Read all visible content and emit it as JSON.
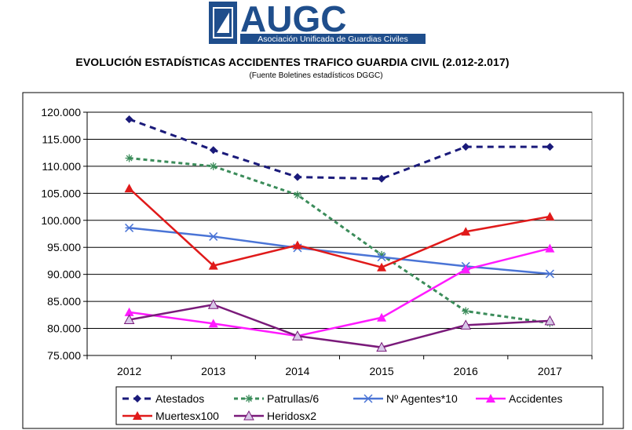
{
  "logo": {
    "name": "AUGC",
    "tagline": "Asociación Unificada de Guardias Civiles",
    "primary_color": "#1f4e8c"
  },
  "title": "EVOLUCIÓN ESTADÍSTICAS ACCIDENTES TRAFICO GUARDIA CIVIL (2.012-2.017)",
  "subtitle": "(Fuente Boletines estadísticos DGGC)",
  "chart_data": {
    "type": "line",
    "categories": [
      "2012",
      "2013",
      "2014",
      "2015",
      "2016",
      "2017"
    ],
    "ylim": [
      75000,
      120000
    ],
    "y_ticks": [
      "75.000",
      "80.000",
      "85.000",
      "90.000",
      "95.000",
      "100.000",
      "105.000",
      "110.000",
      "115.000",
      "120.000"
    ],
    "y_tick_values": [
      75000,
      80000,
      85000,
      90000,
      95000,
      100000,
      105000,
      110000,
      115000,
      120000
    ],
    "grid": true,
    "legend_position": "bottom",
    "series": [
      {
        "name": "Atestados",
        "values": [
          118700,
          113000,
          108000,
          107700,
          113600,
          113600
        ],
        "color": "#1a1a7a",
        "dash": "8,6",
        "marker": "diamond"
      },
      {
        "name": "Patrullas/6",
        "values": [
          111500,
          110000,
          104700,
          93600,
          83200,
          81000
        ],
        "color": "#3b8c5a",
        "dash": "5,4",
        "marker": "star"
      },
      {
        "name": "Nº Agentes*10",
        "values": [
          98600,
          97000,
          94900,
          93200,
          91500,
          90100
        ],
        "color": "#4a74d6",
        "dash": "",
        "marker": "asterisk"
      },
      {
        "name": "Accidentes",
        "values": [
          83000,
          80900,
          78600,
          82000,
          90900,
          94800
        ],
        "color": "#ff1aff",
        "dash": "",
        "marker": "triangle"
      },
      {
        "name": "Muertesx100",
        "values": [
          105900,
          91600,
          95400,
          91300,
          97900,
          100700
        ],
        "color": "#e01a1a",
        "dash": "",
        "marker": "triangle"
      },
      {
        "name": "Heridosx2",
        "values": [
          81600,
          84400,
          78600,
          76500,
          80600,
          81400
        ],
        "color": "#7a1a7a",
        "dash": "",
        "marker": "triangle-open"
      }
    ]
  }
}
